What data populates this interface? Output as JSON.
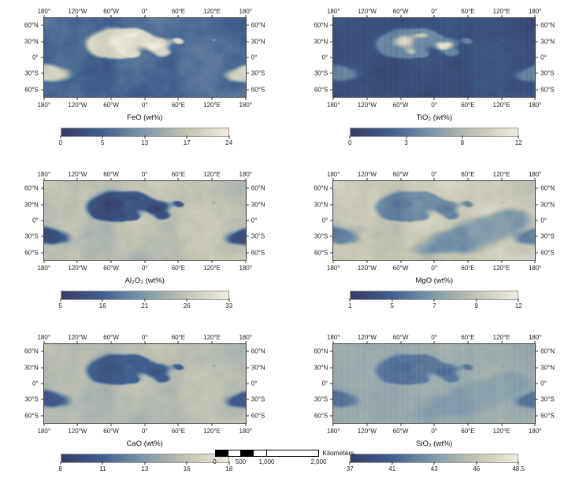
{
  "figure": {
    "colormap": {
      "positions": [
        0,
        0.25,
        0.5,
        0.75,
        1
      ],
      "colors": [
        "#353c63",
        "#41608f",
        "#7f9aab",
        "#c3c3b1",
        "#f0ecdf"
      ]
    },
    "lon_labels": [
      "180°",
      "120°W",
      "60°W",
      "0°",
      "60°E",
      "120°E",
      "180°"
    ],
    "lat_labels": [
      "60°N",
      "30°N",
      "0°",
      "30°S",
      "60°S"
    ],
    "panels": [
      {
        "id": "feo",
        "title": "FeO (wt%)",
        "colorbar_ticks": [
          "0",
          "5",
          "13",
          "17",
          "24"
        ]
      },
      {
        "id": "tio2",
        "title": "TiO₂ (wt%)",
        "colorbar_ticks": [
          "0",
          "3",
          "8",
          "12"
        ]
      },
      {
        "id": "al2o3",
        "title": "Al₂O₃ (wt%)",
        "colorbar_ticks": [
          "5",
          "16",
          "21",
          "26",
          "33"
        ]
      },
      {
        "id": "mgo",
        "title": "MgO (wt%)",
        "colorbar_ticks": [
          "1",
          "5",
          "7",
          "9",
          "12"
        ]
      },
      {
        "id": "cao",
        "title": "CaO (wt%)",
        "colorbar_ticks": [
          "8",
          "11",
          "13",
          "16",
          "18"
        ]
      },
      {
        "id": "sio2",
        "title": "SiO₂ (wt%)",
        "colorbar_ticks": [
          "37",
          "41",
          "43",
          "46",
          "48.5"
        ]
      }
    ],
    "scale_bar": {
      "label": "Kilometers",
      "ticks": [
        "0",
        "500",
        "1,000",
        "2,000"
      ]
    }
  }
}
